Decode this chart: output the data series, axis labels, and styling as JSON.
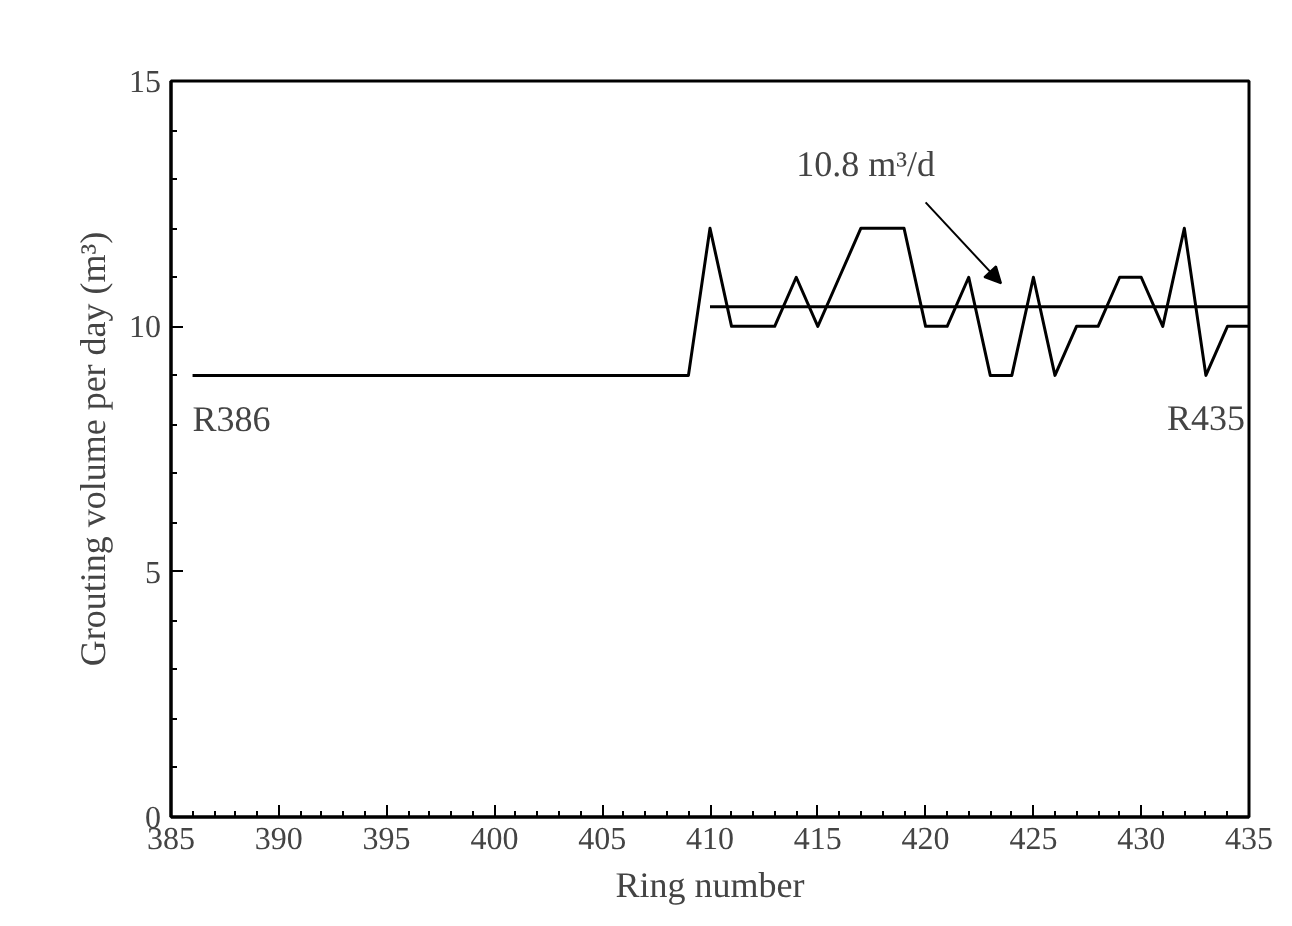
{
  "chart_data": {
    "type": "line",
    "xlabel": "Ring number",
    "ylabel": "Grouting volume per day (m³)",
    "x": [
      386,
      387,
      388,
      389,
      390,
      391,
      392,
      393,
      394,
      395,
      396,
      397,
      398,
      399,
      400,
      401,
      402,
      403,
      404,
      405,
      406,
      407,
      408,
      409,
      410,
      411,
      412,
      413,
      414,
      415,
      416,
      417,
      418,
      419,
      420,
      421,
      422,
      423,
      424,
      425,
      426,
      427,
      428,
      429,
      430,
      431,
      432,
      433,
      434,
      435
    ],
    "series": [
      {
        "color": "#000000",
        "values": [
          9,
          9,
          9,
          9,
          9,
          9,
          9,
          9,
          9,
          9,
          9,
          9,
          9,
          9,
          9,
          9,
          9,
          9,
          9,
          9,
          9,
          9,
          9,
          9,
          12,
          10,
          10,
          10,
          11,
          10,
          11,
          12,
          12,
          12,
          10,
          10,
          11,
          9,
          9,
          11,
          9,
          10,
          10,
          11,
          11,
          10,
          12,
          9,
          10,
          10
        ]
      },
      {
        "color": "#000000",
        "x": [
          410,
          435
        ],
        "values": [
          10.4,
          10.4
        ]
      }
    ],
    "annotations": [
      "10.8 m³/d",
      {
        "text": "R386",
        "x": 386,
        "y": 9
      },
      {
        "text": "R435",
        "x": 435,
        "y": 10
      }
    ],
    "xlim": [
      385,
      435
    ],
    "ylim": [
      0,
      15
    ],
    "xticks": [
      385,
      390,
      395,
      400,
      405,
      410,
      415,
      420,
      425,
      430,
      435
    ],
    "yticks": [
      0,
      5,
      10,
      15
    ],
    "grid": false,
    "marker": "none",
    "line_style": "solid"
  }
}
